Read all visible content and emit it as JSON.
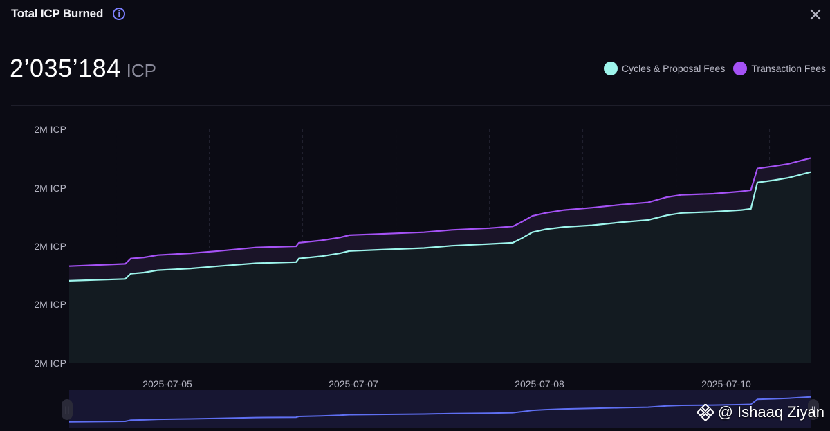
{
  "header": {
    "title": "Total ICP Burned",
    "info_icon": "info-icon",
    "close_icon": "close-icon"
  },
  "summary": {
    "value": "2’035’184",
    "unit": "ICP"
  },
  "legend": [
    {
      "label": "Cycles & Proposal Fees",
      "color": "#9ef5ec"
    },
    {
      "label": "Transaction Fees",
      "color": "#a552f5"
    }
  ],
  "watermark": {
    "text": "@ Ishaaq Ziyan",
    "icon": "binance-logo-icon"
  },
  "chart_data": {
    "type": "area",
    "y_tick_labels": [
      "2M ICP",
      "2M ICP",
      "2M ICP",
      "2M ICP",
      "2M ICP"
    ],
    "x_tick_labels": [
      {
        "label": "2025-07-05",
        "t": 1.13
      },
      {
        "label": "2025-07-07",
        "t": 3.13
      },
      {
        "label": "2025-07-08",
        "t": 5.13
      },
      {
        "label": "2025-07-10",
        "t": 7.13
      }
    ],
    "x_range": [
      0,
      7.94
    ],
    "y_range": [
      0,
      4
    ],
    "grid": "vertical dashed",
    "series": [
      {
        "name": "Cycles & Proposal Fees",
        "color": "#9ef5ec",
        "points": [
          [
            0,
            1.41
          ],
          [
            0.6,
            1.44
          ],
          [
            0.66,
            1.53
          ],
          [
            0.8,
            1.55
          ],
          [
            0.95,
            1.59
          ],
          [
            1.3,
            1.62
          ],
          [
            1.6,
            1.66
          ],
          [
            2.0,
            1.71
          ],
          [
            2.43,
            1.73
          ],
          [
            2.46,
            1.79
          ],
          [
            2.7,
            1.83
          ],
          [
            2.9,
            1.88
          ],
          [
            3.0,
            1.92
          ],
          [
            3.3,
            1.94
          ],
          [
            3.8,
            1.97
          ],
          [
            4.1,
            2.01
          ],
          [
            4.5,
            2.04
          ],
          [
            4.75,
            2.06
          ],
          [
            4.85,
            2.14
          ],
          [
            4.96,
            2.24
          ],
          [
            5.1,
            2.29
          ],
          [
            5.3,
            2.33
          ],
          [
            5.6,
            2.36
          ],
          [
            5.9,
            2.41
          ],
          [
            6.2,
            2.45
          ],
          [
            6.4,
            2.53
          ],
          [
            6.56,
            2.57
          ],
          [
            6.9,
            2.59
          ],
          [
            7.2,
            2.62
          ],
          [
            7.3,
            2.64
          ],
          [
            7.37,
            3.09
          ],
          [
            7.55,
            3.13
          ],
          [
            7.7,
            3.17
          ],
          [
            7.94,
            3.27
          ]
        ]
      },
      {
        "name": "Transaction Fees",
        "color": "#a552f5",
        "points": [
          [
            0,
            1.66
          ],
          [
            0.6,
            1.7
          ],
          [
            0.66,
            1.79
          ],
          [
            0.8,
            1.81
          ],
          [
            0.95,
            1.85
          ],
          [
            1.3,
            1.88
          ],
          [
            1.6,
            1.92
          ],
          [
            2.0,
            1.98
          ],
          [
            2.43,
            2.0
          ],
          [
            2.46,
            2.06
          ],
          [
            2.7,
            2.1
          ],
          [
            2.9,
            2.15
          ],
          [
            3.0,
            2.19
          ],
          [
            3.3,
            2.21
          ],
          [
            3.8,
            2.24
          ],
          [
            4.1,
            2.28
          ],
          [
            4.5,
            2.31
          ],
          [
            4.75,
            2.34
          ],
          [
            4.85,
            2.42
          ],
          [
            4.96,
            2.52
          ],
          [
            5.1,
            2.57
          ],
          [
            5.3,
            2.62
          ],
          [
            5.6,
            2.66
          ],
          [
            5.9,
            2.71
          ],
          [
            6.2,
            2.75
          ],
          [
            6.4,
            2.84
          ],
          [
            6.56,
            2.88
          ],
          [
            6.9,
            2.9
          ],
          [
            7.2,
            2.94
          ],
          [
            7.3,
            2.96
          ],
          [
            7.37,
            3.33
          ],
          [
            7.55,
            3.37
          ],
          [
            7.7,
            3.41
          ],
          [
            7.94,
            3.51
          ]
        ]
      }
    ],
    "navigator_line_color": "#5f6ff2"
  }
}
